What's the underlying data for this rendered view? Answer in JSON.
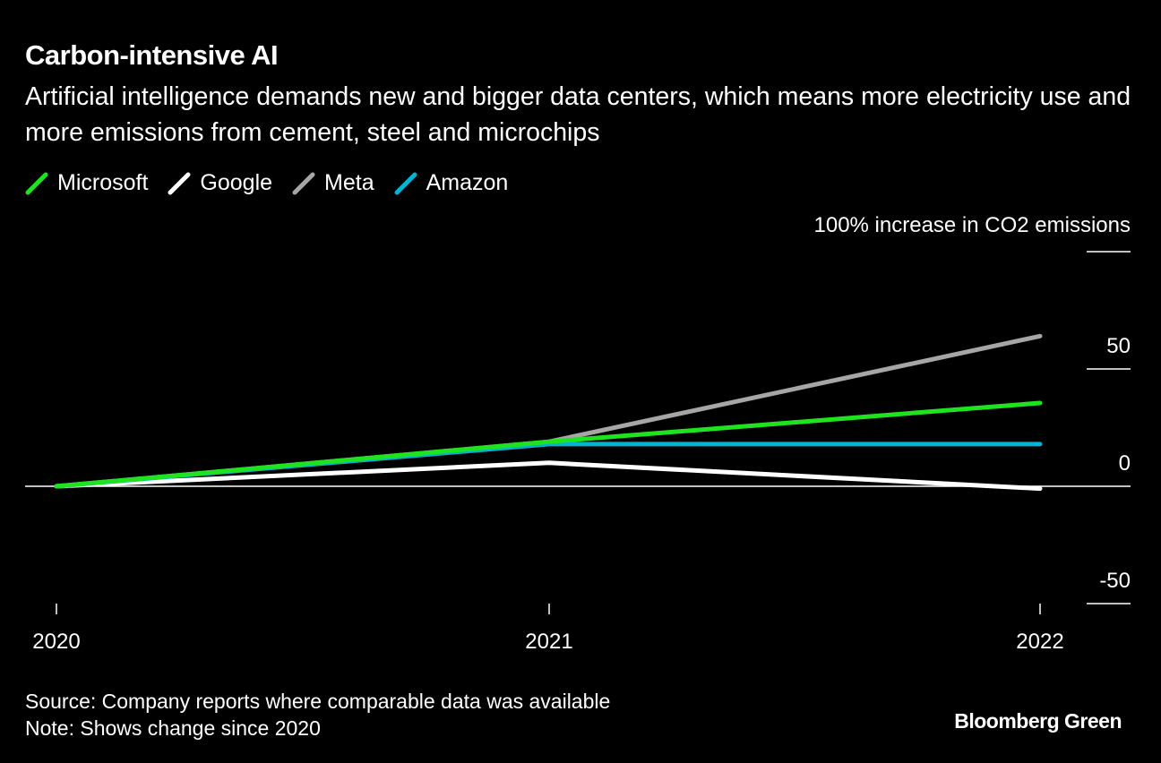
{
  "title": "Carbon-intensive AI",
  "subtitle": "Artificial intelligence demands new and bigger data centers, which means more electricity use and more emissions from cement, steel and microchips",
  "source": "Source: Company reports where comparable data was available",
  "note": "Note: Shows change since 2020",
  "brand": "Bloomberg Green",
  "chart_data": {
    "type": "line",
    "title": "Carbon-intensive AI",
    "ylabel": "100% increase in CO2 emissions",
    "x": [
      "2020",
      "2021",
      "2022"
    ],
    "ylim": [
      -50,
      100
    ],
    "yticks": [
      {
        "value": 100,
        "label": ""
      },
      {
        "value": 50,
        "label": "50"
      },
      {
        "value": 0,
        "label": "0"
      },
      {
        "value": -50,
        "label": "-50"
      }
    ],
    "legend_position": "top-left",
    "series": [
      {
        "name": "Microsoft",
        "color": "#1fe31f",
        "values": [
          0,
          19,
          35.5
        ]
      },
      {
        "name": "Google",
        "color": "#ffffff",
        "values": [
          0,
          10,
          -1
        ]
      },
      {
        "name": "Meta",
        "color": "#a6a6a6",
        "values": [
          0,
          19,
          64
        ]
      },
      {
        "name": "Amazon",
        "color": "#00b4d2",
        "values": [
          0,
          18,
          18
        ]
      }
    ]
  }
}
